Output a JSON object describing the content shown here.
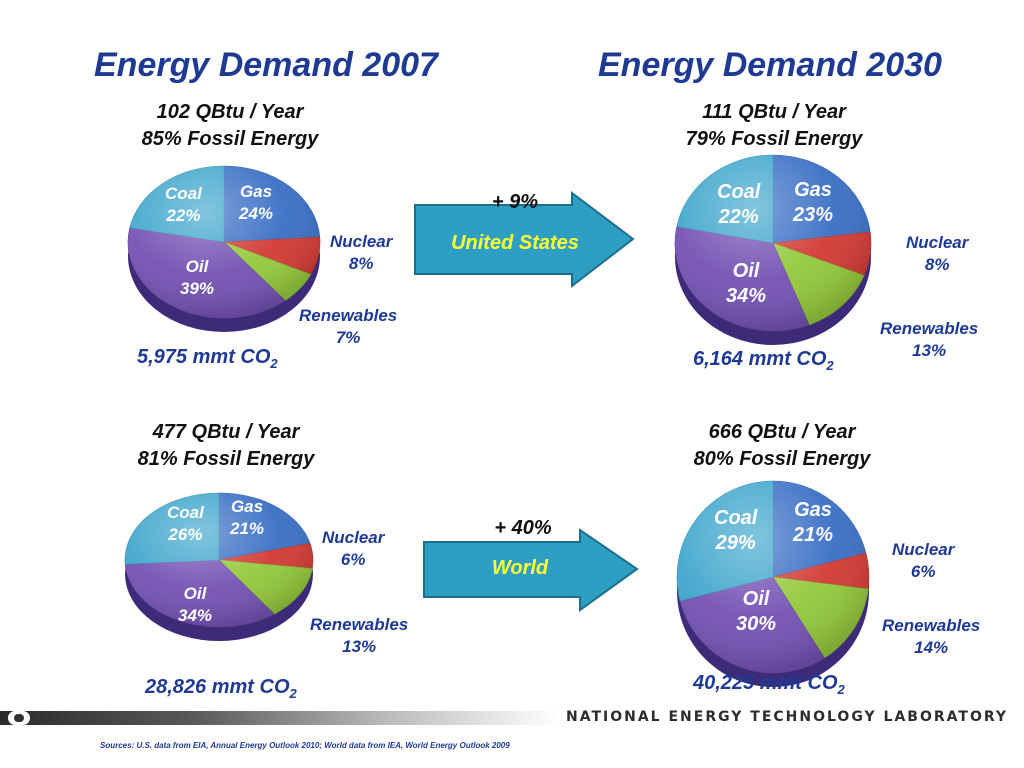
{
  "chart_data": [
    {
      "type": "pie",
      "title": "Energy Demand 2007",
      "subtitle": [
        "102 QBtu / Year",
        "85% Fossil Energy"
      ],
      "categories": [
        "Gas",
        "Nuclear",
        "Renewables",
        "Oil",
        "Coal"
      ],
      "labels": [
        "24%",
        "8%",
        "7%",
        "39%",
        "22%"
      ],
      "values": [
        24,
        8,
        7,
        39,
        22
      ],
      "emissions_value": "5,975",
      "emissions_unit": "mmt CO",
      "emissions_sub": "2",
      "colors": [
        "#3a6fc4",
        "#d23a33",
        "#93c83b",
        "#7452b3",
        "#3fa6cc"
      ]
    },
    {
      "type": "pie",
      "title": "Energy Demand 2030",
      "subtitle": [
        "111 QBtu / Year",
        "79% Fossil Energy"
      ],
      "categories": [
        "Gas",
        "Nuclear",
        "Renewables",
        "Oil",
        "Coal"
      ],
      "labels": [
        "23%",
        "8%",
        "13%",
        "34%",
        "22%"
      ],
      "values": [
        23,
        8,
        13,
        34,
        22
      ],
      "emissions_value": "6,164",
      "emissions_unit": "mmt CO",
      "emissions_sub": "2",
      "colors": [
        "#3a6fc4",
        "#d23a33",
        "#93c83b",
        "#7452b3",
        "#3fa6cc"
      ]
    },
    {
      "type": "pie",
      "subtitle": [
        "477 QBtu / Year",
        "81% Fossil Energy"
      ],
      "categories": [
        "Gas",
        "Nuclear",
        "Renewables",
        "Oil",
        "Coal"
      ],
      "labels": [
        "21%",
        "6%",
        "13%",
        "34%",
        "26%"
      ],
      "values": [
        21,
        6,
        13,
        34,
        26
      ],
      "emissions_value": "28,826",
      "emissions_unit": "mmt CO",
      "emissions_sub": "2",
      "colors": [
        "#3a6fc4",
        "#d23a33",
        "#93c83b",
        "#7452b3",
        "#3fa6cc"
      ]
    },
    {
      "type": "pie",
      "subtitle": [
        "666 QBtu / Year",
        "80% Fossil Energy"
      ],
      "categories": [
        "Gas",
        "Nuclear",
        "Renewables",
        "Oil",
        "Coal"
      ],
      "labels": [
        "21%",
        "6%",
        "14%",
        "30%",
        "29%"
      ],
      "values": [
        21,
        6,
        14,
        30,
        29
      ],
      "emissions_value": "40,225",
      "emissions_unit": "mmt CO",
      "emissions_sub": "2",
      "colors": [
        "#3a6fc4",
        "#d23a33",
        "#93c83b",
        "#7452b3",
        "#3fa6cc"
      ]
    }
  ],
  "arrows": [
    {
      "growth": "+ 9%",
      "label": "United States"
    },
    {
      "growth": "+ 40%",
      "label": "World"
    }
  ],
  "footer": {
    "org": "NATIONAL ENERGY TECHNOLOGY LABORATORY",
    "source": "Sources: U.S. data from EIA, Annual Energy Outlook 2010; World data from IEA, World Energy Outlook 2009"
  }
}
